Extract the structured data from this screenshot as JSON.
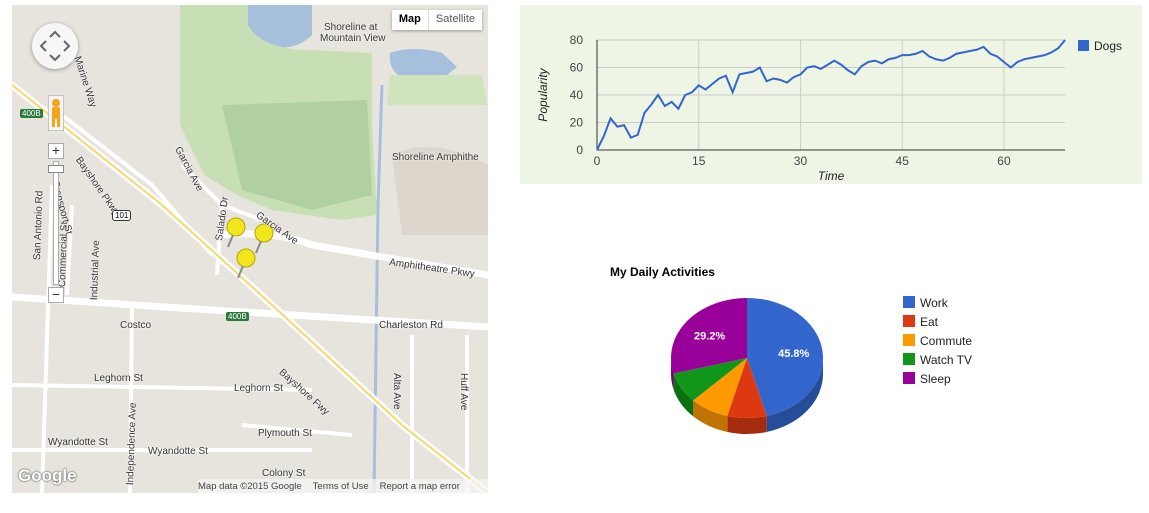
{
  "map": {
    "map_type_buttons": {
      "map": "Map",
      "satellite": "Satellite"
    },
    "google_logo": "Google",
    "attribution": {
      "data": "Map data ©2015 Google",
      "terms": "Terms of Use",
      "report": "Report a map error"
    },
    "zoom": {
      "in": "+",
      "out": "−"
    },
    "labels": {
      "shoreline_at": "Shoreline at",
      "mountain_view": "Mountain View",
      "shoreline_amphitheatre": "Shoreline Amphithe",
      "marine_way": "Marine Way",
      "bayshore_pkwy": "Bayshore Pkwy",
      "garcia_ave_1": "Garcia Ave",
      "garcia_ave_2": "Garcia Ave",
      "salado_dr": "Salado Dr",
      "amphitheatre_pkwy": "Amphitheatre Pkwy",
      "charleston_rd": "Charleston Rd",
      "san_antonio_rd": "San Antonio Rd",
      "commercial_st": "Commercial St",
      "transport_st": "Transport St",
      "industrial_ave": "Industrial Ave",
      "costco": "Costco",
      "leghorn_st_1": "Leghorn St",
      "leghorn_st_2": "Leghorn St",
      "bayshore_fwy": "Bayshore Fwy",
      "plymouth_st": "Plymouth St",
      "wyandotte_st_1": "Wyandotte St",
      "wyandotte_st_2": "Wyandotte St",
      "independence_ave": "Independence Ave",
      "colony_st": "Colony St",
      "alta_ave": "Alta Ave",
      "huff_ave": "Huff Ave",
      "shield_400b_1": "400B",
      "shield_400b_2": "400B",
      "shield_101": "101"
    },
    "markers": 3
  },
  "line_chart": {
    "chart_data": {
      "type": "line",
      "xlabel": "Time",
      "ylabel": "Popularity",
      "xlim": [
        0,
        69
      ],
      "ylim": [
        0,
        80
      ],
      "xticks": [
        "0",
        "15",
        "30",
        "45",
        "60"
      ],
      "yticks": [
        "0",
        "20",
        "40",
        "60",
        "80"
      ],
      "legend_position": "right",
      "series": [
        {
          "name": "Dogs",
          "color": "#3366cc",
          "x": [
            0,
            1,
            2,
            3,
            4,
            5,
            6,
            7,
            8,
            9,
            10,
            11,
            12,
            13,
            14,
            15,
            16,
            17,
            18,
            19,
            20,
            21,
            22,
            23,
            24,
            25,
            26,
            27,
            28,
            29,
            30,
            31,
            32,
            33,
            34,
            35,
            36,
            37,
            38,
            39,
            40,
            41,
            42,
            43,
            44,
            45,
            46,
            47,
            48,
            49,
            50,
            51,
            52,
            53,
            54,
            55,
            56,
            57,
            58,
            59,
            60,
            61,
            62,
            63,
            64,
            65,
            66,
            67,
            68,
            69
          ],
          "values": [
            0,
            10,
            23,
            17,
            18,
            9,
            11,
            27,
            33,
            40,
            32,
            35,
            30,
            40,
            42,
            47,
            44,
            48,
            52,
            54,
            42,
            55,
            56,
            57,
            60,
            50,
            52,
            51,
            49,
            53,
            55,
            60,
            61,
            59,
            62,
            65,
            62,
            58,
            55,
            61,
            64,
            65,
            63,
            66,
            67,
            69,
            69,
            70,
            72,
            68,
            66,
            65,
            67,
            70,
            71,
            72,
            73,
            75,
            70,
            68,
            64,
            60,
            64,
            66,
            67,
            68,
            69,
            71,
            74,
            80
          ]
        }
      ]
    }
  },
  "pie_chart": {
    "chart_data": {
      "type": "pie",
      "title": "My Daily Activities",
      "is3D": true,
      "legend_position": "right",
      "categories": [
        "Work",
        "Eat",
        "Commute",
        "Watch TV",
        "Sleep"
      ],
      "values": [
        11,
        2,
        2,
        2,
        7
      ],
      "labels_shown": [
        "45.8%",
        "",
        "",
        "",
        "29.2%"
      ],
      "colors": [
        "#3366cc",
        "#dc3912",
        "#ff9900",
        "#109618",
        "#990099"
      ],
      "side_colors": [
        "#264d99",
        "#a52b0e",
        "#bf7300",
        "#0c7012",
        "#730073"
      ]
    }
  }
}
